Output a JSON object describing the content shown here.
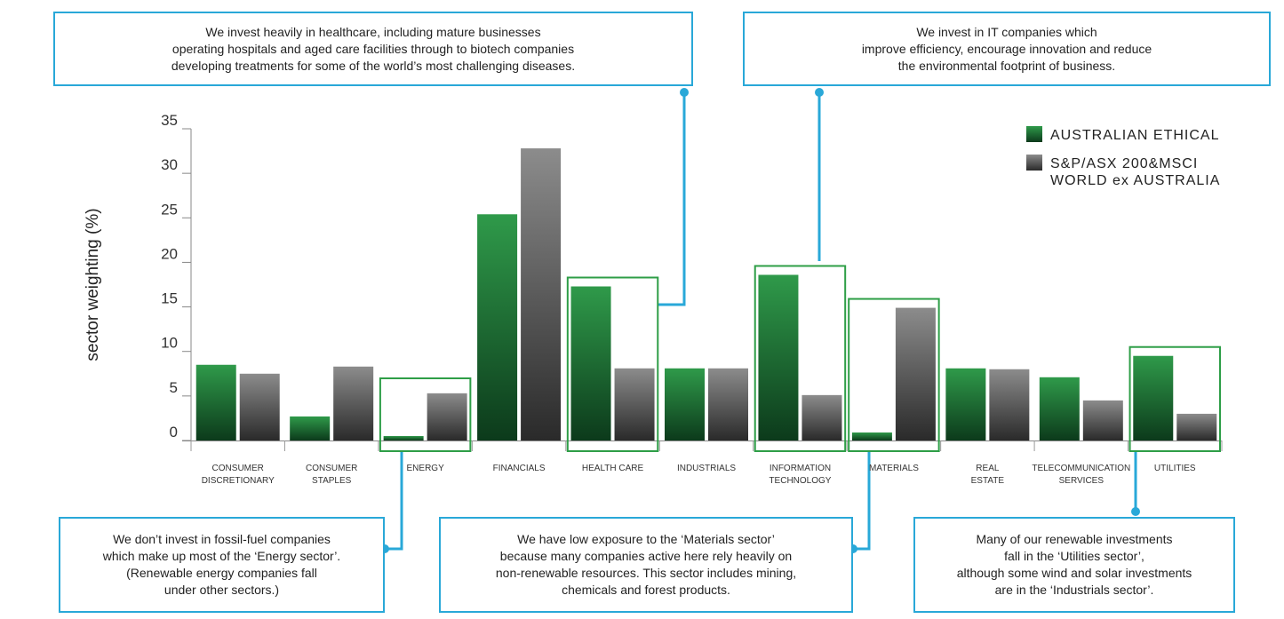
{
  "chart_data": {
    "type": "bar",
    "ylabel": "sector weighting (%)",
    "ylim": [
      0,
      35
    ],
    "yticks": [
      0,
      5,
      10,
      15,
      20,
      25,
      30,
      35
    ],
    "grid": false,
    "legend_position": "top-right",
    "categories": [
      "CONSUMER\nDISCRETIONARY",
      "CONSUMER\nSTAPLES",
      "ENERGY",
      "FINANCIALS",
      "HEALTH CARE",
      "INDUSTRIALS",
      "INFORMATION\nTECHNOLOGY",
      "MATERIALS",
      "REAL\nESTATE",
      "TELECOMMUNICATION\nSERVICES",
      "UTILITIES"
    ],
    "series": [
      {
        "name": "AUSTRALIAN ETHICAL",
        "color": "#1f7a3a",
        "values": [
          8.5,
          2.7,
          0.5,
          25.4,
          17.3,
          8.1,
          18.6,
          0.9,
          8.1,
          7.1,
          9.5
        ]
      },
      {
        "name": "S&P/ASX 200&MSCI\nWORLD ex AUSTRALIA",
        "color": "#6b6b6b",
        "values": [
          7.5,
          8.3,
          5.3,
          32.8,
          8.1,
          8.1,
          5.1,
          14.9,
          8.0,
          4.5,
          3.0
        ]
      }
    ],
    "highlighted_categories": [
      "ENERGY",
      "HEALTH CARE",
      "INFORMATION\nTECHNOLOGY",
      "MATERIALS",
      "UTILITIES"
    ],
    "highlight_color": "#2e9e47",
    "callout_color": "#29a8d8"
  },
  "callouts": {
    "health_care": "We invest heavily in healthcare, including mature businesses\noperating hospitals and aged care facilities through to biotech companies\ndeveloping treatments for some of the world’s most challenging diseases.",
    "it": "We invest in IT companies which\nimprove efficiency, encourage innovation and reduce\nthe environmental footprint of business.",
    "energy": "We don’t invest in fossil-fuel companies\nwhich make up most of the ‘Energy sector’.\n(Renewable energy companies fall\nunder other sectors.)",
    "materials": "We have low exposure to the ‘Materials sector’\nbecause many companies active here rely heavily on\nnon-renewable resources. This sector includes mining,\nchemicals and forest products.",
    "utilities": "Many of our renewable investments\nfall in the ‘Utilities sector’,\nalthough some wind and solar investments\nare in the ‘Industrials sector’."
  }
}
